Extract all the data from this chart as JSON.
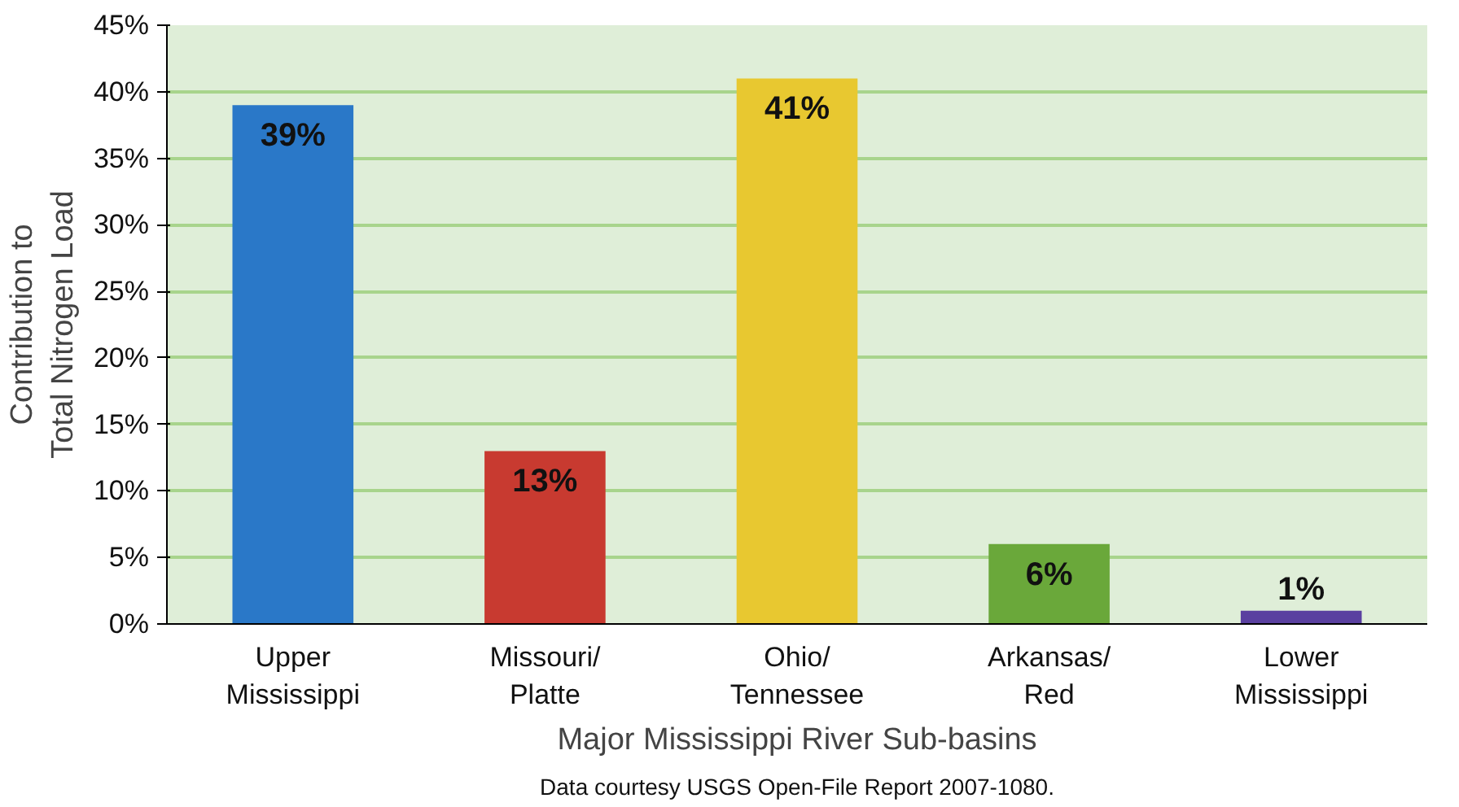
{
  "chart_data": {
    "type": "bar",
    "xlabel": "Major Mississippi River Sub-basins",
    "ylabel": "Contribution to\nTotal Nitrogen Load",
    "categories": [
      "Upper\nMississippi",
      "Missouri/\nPlatte",
      "Ohio/\nTennessee",
      "Arkansas/\nRed",
      "Lower\nMississippi"
    ],
    "values": [
      39,
      13,
      41,
      6,
      1
    ],
    "colors": [
      "#2a78c8",
      "#c83a30",
      "#e8c830",
      "#6aa83a",
      "#5a40a0"
    ],
    "value_labels": [
      "39%",
      "13%",
      "41%",
      "6%",
      "1%"
    ],
    "ylim": [
      0,
      45
    ],
    "yticks": [
      {
        "value": 0,
        "label": "0%"
      },
      {
        "value": 5,
        "label": "5%"
      },
      {
        "value": 10,
        "label": "10%"
      },
      {
        "value": 15,
        "label": "15%"
      },
      {
        "value": 20,
        "label": "20%"
      },
      {
        "value": 25,
        "label": "25%"
      },
      {
        "value": 30,
        "label": "30%"
      },
      {
        "value": 35,
        "label": "35%"
      },
      {
        "value": 40,
        "label": "40%"
      },
      {
        "value": 45,
        "label": "45%"
      }
    ],
    "grid": "y",
    "annotations": [
      "Data courtesy USGS Open-File Report 2007-1080."
    ]
  }
}
